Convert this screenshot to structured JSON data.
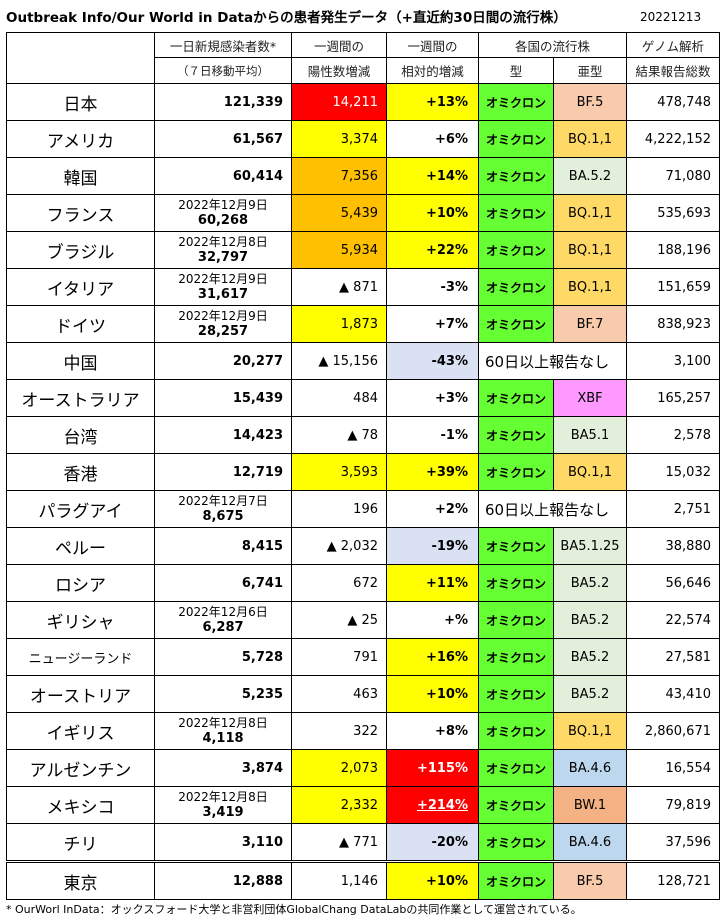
{
  "title": "Outbreak Info/Our World in Dataからの患者発生データ（+直近約30日間の流行株）",
  "date": "20221213",
  "headers": {
    "daily_line1": "一日新規感染者数*",
    "daily_line2": "（７日移動平均）",
    "weekly_line1": "一週間の",
    "weekly_line2": "陽性数増減",
    "relative_line1": "一週間の",
    "relative_line2": "相対的増減",
    "strain": "各国の流行株",
    "type": "型",
    "subtype": "亜型",
    "genome_line1": "ゲノム解析",
    "genome_line2": "結果報告総数"
  },
  "rows": [
    {
      "country": "日本",
      "date": "",
      "daily": "121,339",
      "weekly": "14,211",
      "relative": "+13%",
      "type": "オミクロン",
      "subtype": "BF.5",
      "genome": "478,748"
    },
    {
      "country": "アメリカ",
      "date": "",
      "daily": "61,567",
      "weekly": "3,374",
      "relative": "+6%",
      "type": "オミクロン",
      "subtype": "BQ.1,1",
      "genome": "4,222,152"
    },
    {
      "country": "韓国",
      "date": "",
      "daily": "60,414",
      "weekly": "7,356",
      "relative": "+14%",
      "type": "オミクロン",
      "subtype": "BA.5.2",
      "genome": "71,080"
    },
    {
      "country": "フランス",
      "date": "2022年12月9日",
      "daily": "60,268",
      "weekly": "5,439",
      "relative": "+10%",
      "type": "オミクロン",
      "subtype": "BQ.1,1",
      "genome": "535,693"
    },
    {
      "country": "ブラジル",
      "date": "2022年12月8日",
      "daily": "32,797",
      "weekly": "5,934",
      "relative": "+22%",
      "type": "オミクロン",
      "subtype": "BQ.1,1",
      "genome": "188,196"
    },
    {
      "country": "イタリア",
      "date": "2022年12月9日",
      "daily": "31,617",
      "weekly": "▲ 871",
      "relative": "-3%",
      "type": "オミクロン",
      "subtype": "BQ.1,1",
      "genome": "151,659"
    },
    {
      "country": "ドイツ",
      "date": "2022年12月9日",
      "daily": "28,257",
      "weekly": "1,873",
      "relative": "+7%",
      "type": "オミクロン",
      "subtype": "BF.7",
      "genome": "838,923"
    },
    {
      "country": "中国",
      "date": "",
      "daily": "20,277",
      "weekly": "▲ 15,156",
      "relative": "-43%",
      "strain_note": "60日以上報告なし",
      "genome": "3,100"
    },
    {
      "country": "オーストラリア",
      "date": "",
      "daily": "15,439",
      "weekly": "484",
      "relative": "+3%",
      "type": "オミクロン",
      "subtype": "XBF",
      "genome": "165,257"
    },
    {
      "country": "台湾",
      "date": "",
      "daily": "14,423",
      "weekly": "▲ 78",
      "relative": "-1%",
      "type": "オミクロン",
      "subtype": "BA5.1",
      "genome": "2,578"
    },
    {
      "country": "香港",
      "date": "",
      "daily": "12,719",
      "weekly": "3,593",
      "relative": "+39%",
      "type": "オミクロン",
      "subtype": "BQ.1,1",
      "genome": "15,032"
    },
    {
      "country": "パラグアイ",
      "date": "2022年12月7日",
      "daily": "8,675",
      "weekly": "196",
      "relative": "+2%",
      "strain_note": "60日以上報告なし",
      "genome": "2,751"
    },
    {
      "country": "ペルー",
      "date": "",
      "daily": "8,415",
      "weekly": "▲ 2,032",
      "relative": "-19%",
      "type": "オミクロン",
      "subtype": "BA5.1.25",
      "genome": "38,880"
    },
    {
      "country": "ロシア",
      "date": "",
      "daily": "6,741",
      "weekly": "672",
      "relative": "+11%",
      "type": "オミクロン",
      "subtype": "BA5.2",
      "genome": "56,646"
    },
    {
      "country": "ギリシャ",
      "date": "2022年12月6日",
      "daily": "6,287",
      "weekly": "▲ 25",
      "relative": "+%",
      "type": "オミクロン",
      "subtype": "BA5.2",
      "genome": "22,574"
    },
    {
      "country": "ニュージーランド",
      "date": "",
      "daily": "5,728",
      "weekly": "791",
      "relative": "+16%",
      "type": "オミクロン",
      "subtype": "BA5.2",
      "genome": "27,581"
    },
    {
      "country": "オーストリア",
      "date": "",
      "daily": "5,235",
      "weekly": "463",
      "relative": "+10%",
      "type": "オミクロン",
      "subtype": "BA5.2",
      "genome": "43,410"
    },
    {
      "country": "イギリス",
      "date": "2022年12月8日",
      "daily": "4,118",
      "weekly": "322",
      "relative": "+8%",
      "type": "オミクロン",
      "subtype": "BQ.1,1",
      "genome": "2,860,671"
    },
    {
      "country": "アルゼンチン",
      "date": "",
      "daily": "3,874",
      "weekly": "2,073",
      "relative": "+115%",
      "type": "オミクロン",
      "subtype": "BA.4.6",
      "genome": "16,554"
    },
    {
      "country": "メキシコ",
      "date": "2022年12月8日",
      "daily": "3,419",
      "weekly": "2,332",
      "relative": "+214%",
      "type": "オミクロン",
      "subtype": "BW.1",
      "genome": "79,819"
    },
    {
      "country": "チリ",
      "date": "",
      "daily": "3,110",
      "weekly": "▲ 771",
      "relative": "-20%",
      "type": "オミクロン",
      "subtype": "BA.4.6",
      "genome": "37,596"
    },
    {
      "country": "東京",
      "date": "",
      "daily": "12,888",
      "weekly": "1,146",
      "relative": "+10%",
      "type": "オミクロン",
      "subtype": "BF.5",
      "genome": "128,721"
    }
  ],
  "footnote": "* OurWorl InData：オックスフォード大学と非営利団体GlobalChang DataLabの共同作業として運営されている。",
  "colors": {
    "yellow": "#ffff00",
    "orange": "#ffc000",
    "red": "#ff0000",
    "lavender": "#d9e1f2",
    "type_green": "#66ff33",
    "bf_salmon": "#f8cbad",
    "bq_gold": "#ffd966",
    "ba_lightgreen": "#e2efda",
    "xbf_pink": "#ff99ff",
    "ba46_blue": "#bdd7ee",
    "bw_orange": "#f4b183"
  }
}
